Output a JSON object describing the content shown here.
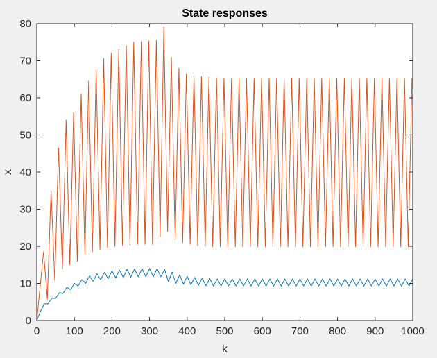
{
  "chart_data": {
    "type": "line",
    "title": "State responses",
    "xlabel": "k",
    "ylabel": "x",
    "xlim": [
      0,
      1000
    ],
    "ylim": [
      0,
      80
    ],
    "xticks": [
      "0",
      "100",
      "200",
      "300",
      "400",
      "500",
      "600",
      "700",
      "800",
      "900",
      "1000"
    ],
    "yticks": [
      "0",
      "10",
      "20",
      "30",
      "40",
      "50",
      "60",
      "70",
      "80"
    ],
    "grid": false,
    "legend": "none",
    "period": 20,
    "series": [
      {
        "color": "#0072bd",
        "description": "small sawtooth oscillation",
        "peaks_x": [
          20,
          40,
          60,
          80,
          100,
          120,
          140,
          160,
          180,
          200,
          220,
          240,
          260,
          280,
          300,
          320,
          340,
          360,
          380,
          400,
          420,
          440,
          460,
          480,
          500,
          520,
          540,
          560,
          580,
          600,
          620,
          640,
          660,
          680,
          700,
          720,
          740,
          760,
          780,
          800,
          820,
          840,
          860,
          880,
          900,
          920,
          940,
          960,
          980,
          1000
        ],
        "peaks_y": [
          4.5,
          6.0,
          7.5,
          9.0,
          10.0,
          11.0,
          12.0,
          12.6,
          13.0,
          13.4,
          13.6,
          13.8,
          13.9,
          14.0,
          14.0,
          14.0,
          13.8,
          13.0,
          12.3,
          11.9,
          11.6,
          11.4,
          11.3,
          11.2,
          11.2,
          11.2,
          11.2,
          11.2,
          11.2,
          11.2,
          11.2,
          11.2,
          11.2,
          11.2,
          11.2,
          11.2,
          11.2,
          11.2,
          11.2,
          11.2,
          11.2,
          11.2,
          11.2,
          11.2,
          11.2,
          11.2,
          11.2,
          11.2,
          11.2,
          11.2
        ],
        "troughs_x": [
          10,
          30,
          50,
          70,
          90,
          110,
          130,
          150,
          170,
          190,
          210,
          230,
          250,
          270,
          290,
          310,
          330,
          350,
          370,
          390,
          410,
          430,
          450,
          470,
          490,
          510,
          530,
          550,
          570,
          590,
          610,
          630,
          650,
          670,
          690,
          710,
          730,
          750,
          770,
          790,
          810,
          830,
          850,
          870,
          890,
          910,
          930,
          950,
          970,
          990
        ],
        "troughs_y": [
          2.5,
          4.5,
          6.0,
          7.3,
          8.3,
          9.3,
          10.0,
          10.6,
          11.0,
          11.3,
          11.5,
          11.6,
          11.7,
          11.8,
          11.8,
          11.8,
          11.8,
          10.5,
          10.0,
          9.8,
          9.6,
          9.5,
          9.4,
          9.3,
          9.3,
          9.3,
          9.3,
          9.3,
          9.3,
          9.3,
          9.3,
          9.3,
          9.3,
          9.3,
          9.3,
          9.3,
          9.3,
          9.3,
          9.3,
          9.3,
          9.3,
          9.3,
          9.3,
          9.3,
          9.3,
          9.3,
          9.3,
          9.3,
          9.3,
          9.3
        ]
      },
      {
        "color": "#d95319",
        "description": "large sawtooth oscillation",
        "peaks_x": [
          18,
          38,
          58,
          78,
          98,
          118,
          138,
          158,
          178,
          198,
          218,
          238,
          258,
          278,
          298,
          318,
          338,
          358,
          378,
          398,
          418,
          438,
          458,
          478,
          498,
          518,
          538,
          558,
          578,
          598,
          618,
          638,
          658,
          678,
          698,
          718,
          738,
          758,
          778,
          798,
          818,
          838,
          858,
          878,
          898,
          918,
          938,
          958,
          978,
          998
        ],
        "peaks_y": [
          18.5,
          35.0,
          46.5,
          54.0,
          56.0,
          61.0,
          64.5,
          67.5,
          70.5,
          72.0,
          73.0,
          74.0,
          75.0,
          75.2,
          75.3,
          75.5,
          79.0,
          71.0,
          68.0,
          66.5,
          66.0,
          65.7,
          65.5,
          65.4,
          65.3,
          65.3,
          65.3,
          65.3,
          65.3,
          65.3,
          65.3,
          65.3,
          65.3,
          65.3,
          65.3,
          65.3,
          65.3,
          65.3,
          65.3,
          65.3,
          65.3,
          65.3,
          65.3,
          65.3,
          65.3,
          65.3,
          65.3,
          65.3,
          65.3,
          65.3
        ],
        "troughs_x": [
          28,
          48,
          68,
          88,
          108,
          128,
          148,
          168,
          188,
          208,
          228,
          248,
          268,
          288,
          308,
          328,
          348,
          368,
          388,
          408,
          428,
          448,
          468,
          488,
          508,
          528,
          548,
          568,
          588,
          608,
          628,
          648,
          668,
          688,
          708,
          728,
          748,
          768,
          788,
          808,
          828,
          848,
          868,
          888,
          908,
          928,
          948,
          968,
          988
        ],
        "troughs_y": [
          5.8,
          10.8,
          14.0,
          15.0,
          16.0,
          17.8,
          18.5,
          19.2,
          19.7,
          20.0,
          20.2,
          20.4,
          20.5,
          20.5,
          20.5,
          22.5,
          24.0,
          22.0,
          21.0,
          20.5,
          20.2,
          20.0,
          19.9,
          19.9,
          19.9,
          19.9,
          19.9,
          19.9,
          19.9,
          19.9,
          19.9,
          19.9,
          19.9,
          19.9,
          19.9,
          19.9,
          19.9,
          19.9,
          19.9,
          19.9,
          19.9,
          19.9,
          19.9,
          19.9,
          19.9,
          19.9,
          19.9,
          19.9,
          19.9
        ]
      }
    ]
  }
}
